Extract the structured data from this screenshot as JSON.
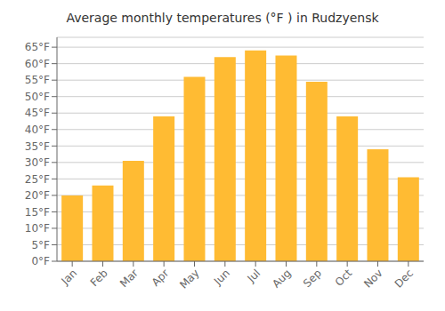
{
  "chart_data": {
    "type": "bar",
    "title": "Average monthly temperatures (°F ) in Rudzyensk",
    "categories": [
      "Jan",
      "Feb",
      "Mar",
      "Apr",
      "May",
      "Jun",
      "Jul",
      "Aug",
      "Sep",
      "Oct",
      "Nov",
      "Dec"
    ],
    "values": [
      20,
      23,
      30.5,
      44,
      56,
      62,
      64,
      62.5,
      54.5,
      44,
      34,
      25.5
    ],
    "color": "#FFBB33",
    "ylim": [
      0,
      68
    ],
    "yticks": [
      {
        "value": 0,
        "label": "0°F"
      },
      {
        "value": 5,
        "label": "5°F"
      },
      {
        "value": 10,
        "label": "10°F"
      },
      {
        "value": 15,
        "label": "15°F"
      },
      {
        "value": 20,
        "label": "20°F"
      },
      {
        "value": 25,
        "label": "25°F"
      },
      {
        "value": 30,
        "label": "30°F"
      },
      {
        "value": 35,
        "label": "35°F"
      },
      {
        "value": 40,
        "label": "40°F"
      },
      {
        "value": 45,
        "label": "45°F"
      },
      {
        "value": 50,
        "label": "50°F"
      },
      {
        "value": 55,
        "label": "55°F"
      },
      {
        "value": 60,
        "label": "60°F"
      },
      {
        "value": 65,
        "label": "65°F"
      }
    ],
    "grid": true
  }
}
